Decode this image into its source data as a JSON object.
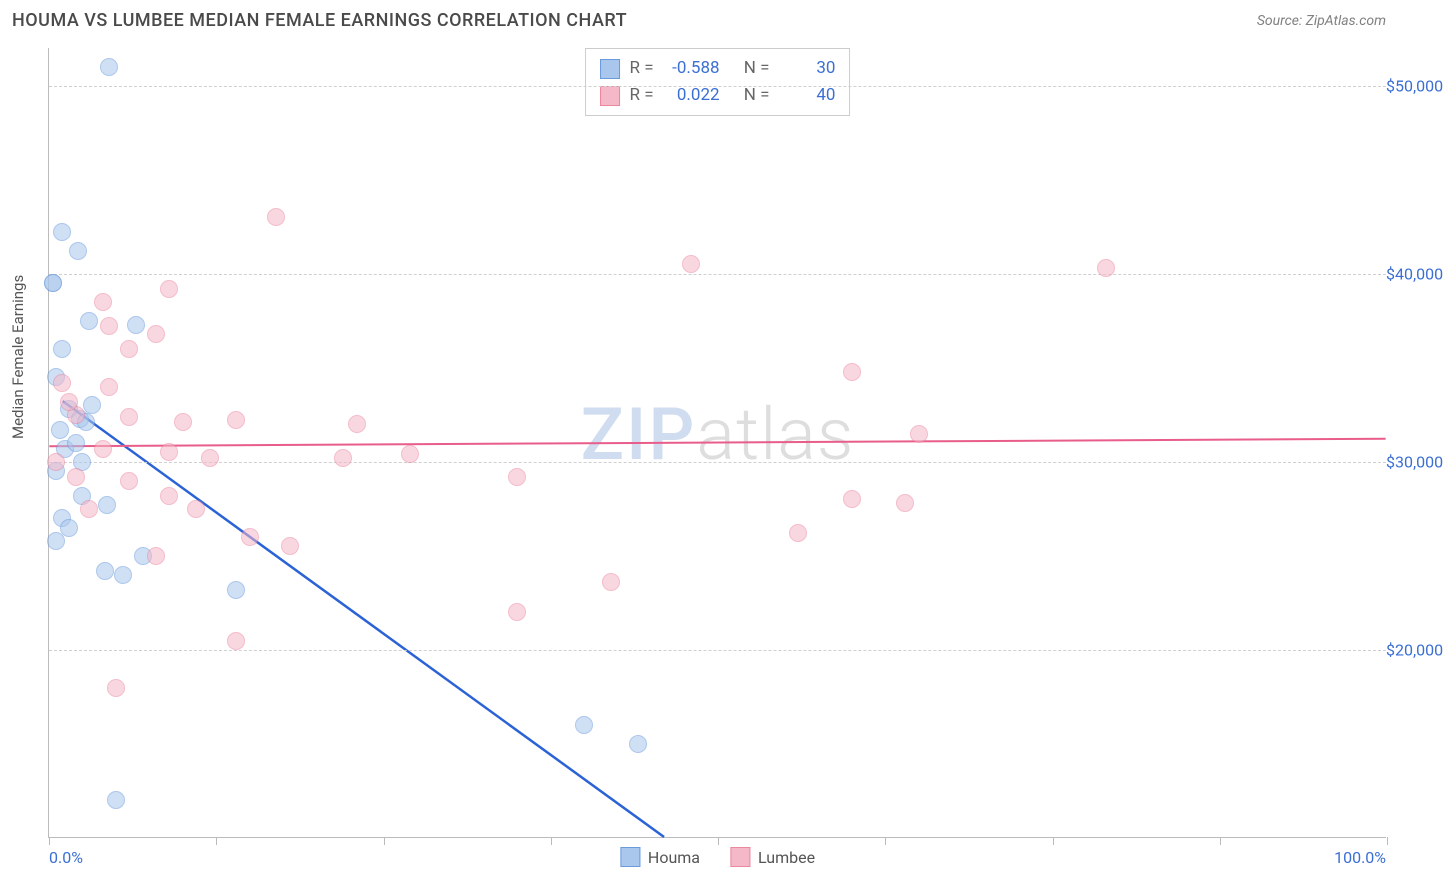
{
  "header": {
    "title": "HOUMA VS LUMBEE MEDIAN FEMALE EARNINGS CORRELATION CHART",
    "source_prefix": "Source: ",
    "source_name": "ZipAtlas.com"
  },
  "watermark": {
    "part1": "ZIP",
    "part2": "atlas"
  },
  "chart": {
    "type": "scatter",
    "background_color": "#ffffff",
    "grid_color": "#d0d0d0",
    "axis_color": "#bbbbbb",
    "y_axis": {
      "title": "Median Female Earnings",
      "min": 10000,
      "max": 52000,
      "ticks": [
        20000,
        30000,
        40000,
        50000
      ],
      "tick_labels": [
        "$20,000",
        "$30,000",
        "$40,000",
        "$50,000"
      ],
      "label_color": "#3b6fd4",
      "label_fontsize": 16
    },
    "x_axis": {
      "min": 0,
      "max": 100,
      "label_left": "0.0%",
      "label_right": "100.0%",
      "tick_positions": [
        0,
        12.5,
        25,
        37.5,
        50,
        62.5,
        75,
        87.5,
        100
      ],
      "label_color": "#3b6fd4",
      "label_fontsize": 16
    },
    "series": [
      {
        "name": "Houma",
        "fill_color": "#a9c6ec",
        "stroke_color": "#6a9bdc",
        "fill_opacity": 0.55,
        "marker_size": 18,
        "trend_color": "#2b63d6",
        "trend_width": 2.5,
        "trend": {
          "x1": 1,
          "y1": 33200,
          "x2": 46,
          "y2": 10000
        },
        "R": "-0.588",
        "N": "30",
        "points": [
          [
            4.5,
            51000
          ],
          [
            1,
            42200
          ],
          [
            2.2,
            41200
          ],
          [
            0.3,
            39500
          ],
          [
            0.3,
            39500
          ],
          [
            3,
            37500
          ],
          [
            6.5,
            37300
          ],
          [
            1,
            36000
          ],
          [
            0.5,
            34500
          ],
          [
            3.2,
            33000
          ],
          [
            1.5,
            32800
          ],
          [
            2.3,
            32300
          ],
          [
            2.8,
            32100
          ],
          [
            0.8,
            31700
          ],
          [
            1.2,
            30700
          ],
          [
            2.0,
            31000
          ],
          [
            2.5,
            30000
          ],
          [
            0.5,
            29500
          ],
          [
            2.5,
            28200
          ],
          [
            4.3,
            27700
          ],
          [
            1.0,
            27000
          ],
          [
            1.5,
            26500
          ],
          [
            0.5,
            25800
          ],
          [
            4.2,
            24200
          ],
          [
            5.5,
            24000
          ],
          [
            7.0,
            25000
          ],
          [
            14,
            23200
          ],
          [
            40,
            16000
          ],
          [
            44,
            15000
          ],
          [
            5.0,
            12000
          ]
        ]
      },
      {
        "name": "Lumbee",
        "fill_color": "#f5b8c9",
        "stroke_color": "#eb879f",
        "fill_opacity": 0.55,
        "marker_size": 18,
        "trend_color": "#e85d8a",
        "trend_width": 2,
        "trend": {
          "x1": 0,
          "y1": 30800,
          "x2": 100,
          "y2": 31200
        },
        "R": "0.022",
        "N": "40",
        "points": [
          [
            17,
            43000
          ],
          [
            48,
            40500
          ],
          [
            79,
            40300
          ],
          [
            9,
            39200
          ],
          [
            4.5,
            37200
          ],
          [
            8,
            36800
          ],
          [
            60,
            34800
          ],
          [
            1,
            34200
          ],
          [
            4.5,
            34000
          ],
          [
            6,
            36000
          ],
          [
            2,
            32500
          ],
          [
            6,
            32400
          ],
          [
            10,
            32100
          ],
          [
            14,
            32200
          ],
          [
            23,
            32000
          ],
          [
            65,
            31500
          ],
          [
            4,
            30700
          ],
          [
            9,
            30500
          ],
          [
            12,
            30200
          ],
          [
            22,
            30200
          ],
          [
            27,
            30400
          ],
          [
            35,
            29200
          ],
          [
            60,
            28000
          ],
          [
            64,
            27800
          ],
          [
            6,
            29000
          ],
          [
            9,
            28200
          ],
          [
            11,
            27500
          ],
          [
            3,
            27500
          ],
          [
            18,
            25500
          ],
          [
            15,
            26000
          ],
          [
            8,
            25000
          ],
          [
            42,
            23600
          ],
          [
            35,
            22000
          ],
          [
            56,
            26200
          ],
          [
            0.5,
            30000
          ],
          [
            14,
            20500
          ],
          [
            5,
            18000
          ],
          [
            2,
            29200
          ],
          [
            1.5,
            33200
          ],
          [
            4,
            38500
          ]
        ]
      }
    ],
    "legend": {
      "stats_labels": {
        "R": "R =",
        "N": "N ="
      },
      "bottom_labels": [
        "Houma",
        "Lumbee"
      ]
    }
  }
}
